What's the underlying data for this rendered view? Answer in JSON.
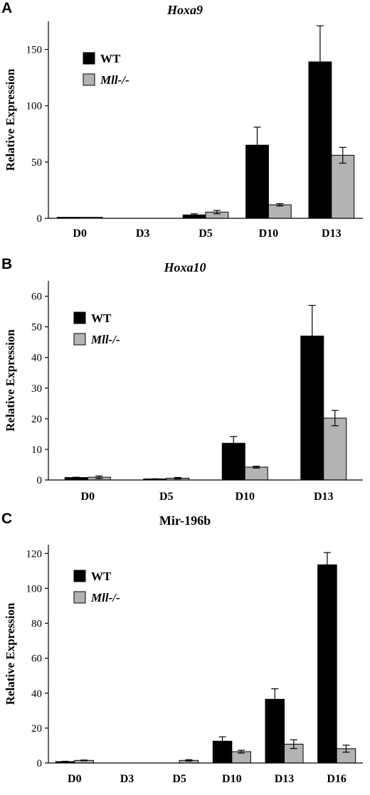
{
  "chart_data": [
    {
      "type": "bar",
      "panel_label": "A",
      "title": "Hoxa9",
      "title_italic": true,
      "ylabel": "Relative Expression",
      "xlabel": "",
      "ylim": [
        0,
        175
      ],
      "yticks": [
        0,
        50,
        100,
        150
      ],
      "grid": false,
      "legend_placement": "top-left",
      "categories": [
        "D0",
        "D3",
        "D5",
        "D10",
        "D13"
      ],
      "series": [
        {
          "name": "WT",
          "name_italic": false,
          "color": "#000000",
          "values": [
            0.5,
            0,
            3,
            65,
            139
          ],
          "errors": [
            0,
            0,
            1,
            16,
            32
          ]
        },
        {
          "name": "Mll-/-",
          "name_italic": true,
          "color": "#b3b3b3",
          "values": [
            0.5,
            0,
            5.5,
            12,
            56
          ],
          "errors": [
            0,
            0,
            1.5,
            1,
            7
          ]
        }
      ]
    },
    {
      "type": "bar",
      "panel_label": "B",
      "title": "Hoxa10",
      "title_italic": true,
      "ylabel": "Relative Expression",
      "xlabel": "",
      "ylim": [
        0,
        65
      ],
      "yticks": [
        0,
        10,
        20,
        30,
        40,
        50,
        60
      ],
      "grid": false,
      "legend_placement": "top-left",
      "categories": [
        "D0",
        "D5",
        "D10",
        "D13"
      ],
      "series": [
        {
          "name": "WT",
          "name_italic": false,
          "color": "#000000",
          "values": [
            0.8,
            0.3,
            12,
            47
          ],
          "errors": [
            0.1,
            0.1,
            2.2,
            10
          ]
        },
        {
          "name": "Mll-/-",
          "name_italic": true,
          "color": "#b3b3b3",
          "values": [
            0.9,
            0.6,
            4.2,
            20.2
          ],
          "errors": [
            0.4,
            0.2,
            0.3,
            2.5
          ]
        }
      ]
    },
    {
      "type": "bar",
      "panel_label": "C",
      "title": "Mir-196b",
      "title_italic": false,
      "ylabel": "Relative Expression",
      "xlabel": "",
      "ylim": [
        0,
        125
      ],
      "yticks": [
        0,
        20,
        40,
        60,
        80,
        100,
        120
      ],
      "grid": false,
      "legend_placement": "top-left",
      "categories": [
        "D0",
        "D3",
        "D5",
        "D10",
        "D13",
        "D16"
      ],
      "series": [
        {
          "name": "WT",
          "name_italic": false,
          "color": "#000000",
          "values": [
            0.8,
            0,
            0,
            12.5,
            36.5,
            113.5
          ],
          "errors": [
            0.2,
            0,
            0,
            2.5,
            6,
            7
          ]
        },
        {
          "name": "Mll-/-",
          "name_italic": true,
          "color": "#b3b3b3",
          "values": [
            1.5,
            0,
            1.5,
            6.5,
            10.8,
            8.2
          ],
          "errors": [
            0.2,
            0,
            0.4,
            0.8,
            2.5,
            2
          ]
        }
      ]
    }
  ]
}
